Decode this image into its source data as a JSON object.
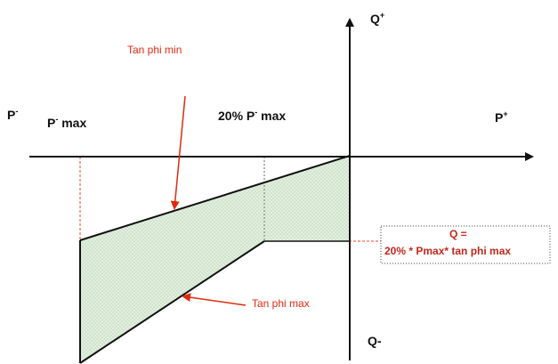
{
  "axes": {
    "p_minus_label": "P",
    "p_minus_sup": "-",
    "p_plus_label": "P",
    "p_plus_sup": "+",
    "q_plus_label": "Q",
    "q_plus_sup": "+",
    "q_minus_label": "Q-"
  },
  "labels": {
    "p_minus_max_prefix": "P",
    "p_minus_max_sup": "-",
    "p_minus_max_suffix": " max",
    "twenty_pct_prefix": "20% P",
    "twenty_pct_sup": "-",
    "twenty_pct_suffix": " max",
    "tan_phi_min": "Tan phi min",
    "tan_phi_max": "Tan phi max",
    "q_box_line1": "Q =",
    "q_box_line2": "20% * Pmax* tan phi max"
  },
  "colors": {
    "axis": "#111111",
    "region_fill": "#e2efdf",
    "region_hatch": "#b9d3b3",
    "annotation_red": "#e02a10",
    "dashed": "#e04a30",
    "box_text": "#c0281c"
  }
}
